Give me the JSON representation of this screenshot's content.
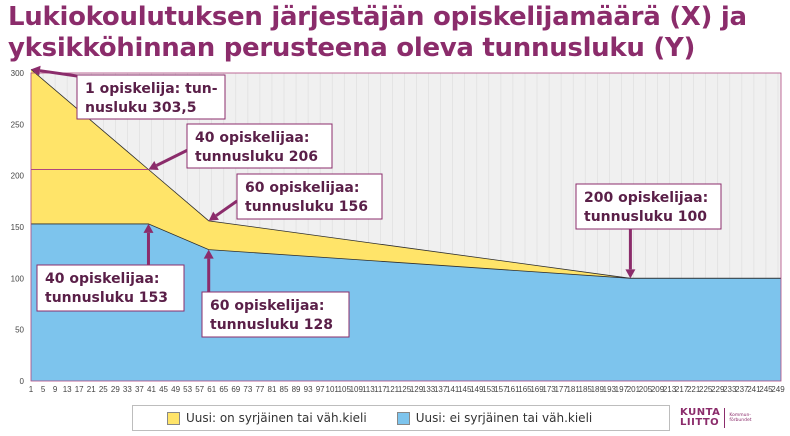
{
  "title": "Lukiokoulutuksen järjestäjän opiskelijamäärä (X) ja yksikköhinnan perusteena oleva tunnusluku (Y)",
  "chart_data": {
    "type": "area",
    "xlim": [
      1,
      250
    ],
    "ylim": [
      0,
      300
    ],
    "yticks": [
      0,
      50,
      100,
      150,
      200,
      250,
      300
    ],
    "xticks": [
      1,
      5,
      9,
      13,
      17,
      21,
      25,
      29,
      33,
      37,
      41,
      45,
      49,
      53,
      57,
      61,
      65,
      69,
      73,
      77,
      81,
      85,
      89,
      93,
      97,
      101,
      105,
      109,
      113,
      117,
      121,
      125,
      129,
      133,
      137,
      141,
      145,
      149,
      153,
      157,
      161,
      165,
      169,
      173,
      177,
      181,
      185,
      189,
      193,
      197,
      201,
      205,
      209,
      213,
      217,
      221,
      225,
      229,
      233,
      237,
      241,
      245,
      249
    ],
    "grid": "vertical",
    "legend_position": "bottom",
    "series": [
      {
        "name": "Uusi: ei syrjäinen tai väh.kieli",
        "color": "#7dc4ed",
        "x": [
          1,
          40,
          60,
          200,
          250
        ],
        "values": [
          153,
          153,
          128,
          100,
          100
        ]
      },
      {
        "name": "Uusi: on syrjäinen tai väh.kieli",
        "color": "#ffe469",
        "x": [
          1,
          40,
          60,
          200,
          250
        ],
        "values": [
          303.5,
          206,
          156,
          100,
          100
        ]
      }
    ],
    "reference_line": {
      "y": 206,
      "x_from": 1,
      "x_to": 40,
      "color": "#b0477f"
    },
    "annotations": [
      {
        "lines": [
          "1 opiskelija: tun-",
          "nusluku 303,5"
        ],
        "x": 1,
        "y": 303.5
      },
      {
        "lines": [
          "40 opiskelijaa:",
          "tunnusluku 206"
        ],
        "x": 40,
        "y": 206
      },
      {
        "lines": [
          "60 opiskelijaa:",
          "tunnusluku 156"
        ],
        "x": 60,
        "y": 156
      },
      {
        "lines": [
          "200 opiskelijaa:",
          "tunnusluku 100"
        ],
        "x": 200,
        "y": 100
      },
      {
        "lines": [
          "40 opiskelijaa:",
          "tunnusluku 153"
        ],
        "x": 40,
        "y": 153
      },
      {
        "lines": [
          "60 opiskelijaa:",
          "tunnusluku 128"
        ],
        "x": 60,
        "y": 128
      }
    ]
  },
  "colors": {
    "accent": "#8b2c6b",
    "plot_background": "#f0f0f0",
    "annotation_border": "#8b2c6b"
  },
  "logo": {
    "name_line1": "KUNTA",
    "name_line2": "LIITTO",
    "sub_line1": "Kommun-",
    "sub_line2": "förbundet"
  }
}
